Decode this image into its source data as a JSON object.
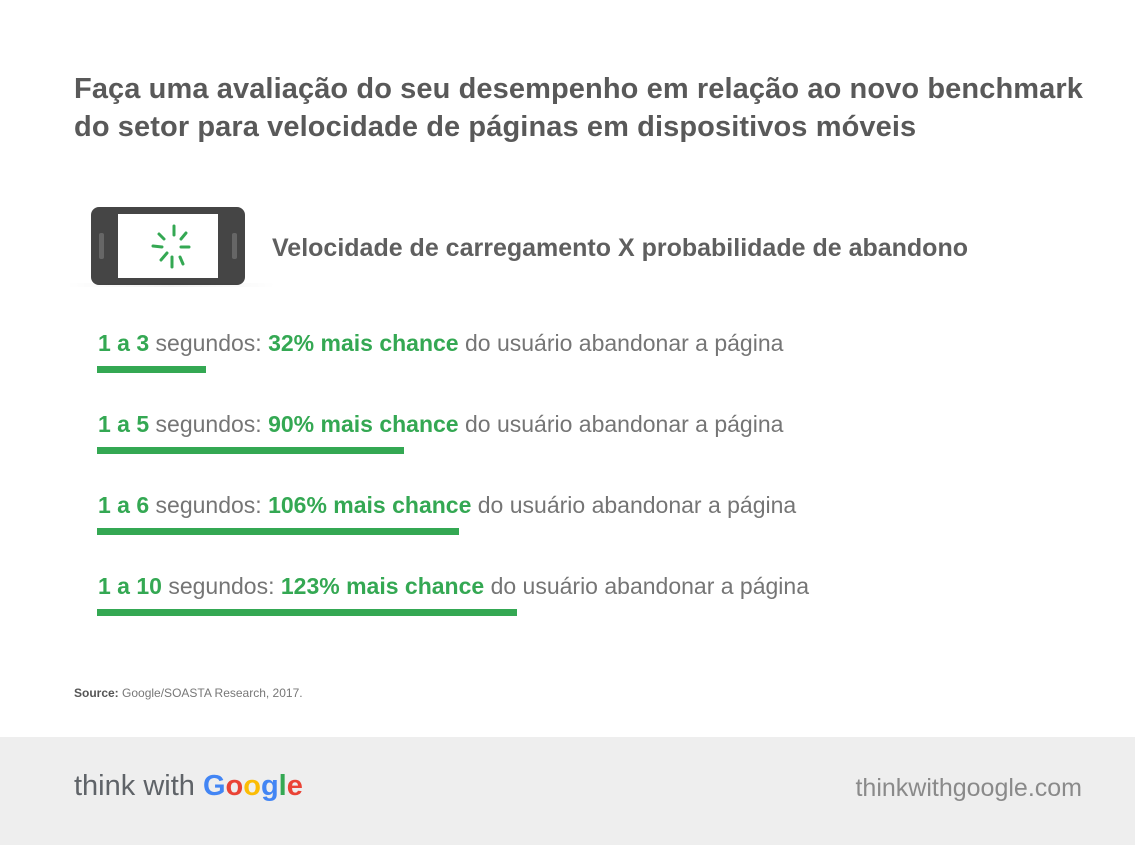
{
  "title": "Faça uma avaliação do seu desempenho em relação ao novo benchmark do setor para velocidade de páginas em dispositivos móveis",
  "icon": "phone-loading-icon",
  "chart_data": {
    "type": "bar",
    "title": "Velocidade de carregamento X probabilidade de abandono",
    "unit": "%",
    "xlabel": "",
    "ylabel": "",
    "ylim": [
      0,
      123
    ],
    "bar_color": "#34a853",
    "rows": [
      {
        "range": "1 a 3",
        "unit_text": "segundos:",
        "value": 32,
        "value_text": "32% mais chance",
        "suffix": "do usuário abandonar a página"
      },
      {
        "range": "1 a 5",
        "unit_text": "segundos:",
        "value": 90,
        "value_text": "90% mais chance",
        "suffix": "do usuário abandonar a página"
      },
      {
        "range": "1 a 6",
        "unit_text": "segundos:",
        "value": 106,
        "value_text": "106% mais chance",
        "suffix": "do usuário abandonar a página"
      },
      {
        "range": "1 a 10",
        "unit_text": "segundos:",
        "value": 123,
        "value_text": "123% mais chance",
        "suffix": "do usuário abandonar a página"
      }
    ]
  },
  "source": {
    "label": "Source:",
    "text": "Google/SOASTA Research, 2017."
  },
  "footer": {
    "brand_prefix": "think with",
    "brand_letters": [
      "G",
      "o",
      "o",
      "g",
      "l",
      "e"
    ],
    "site": "thinkwithgoogle.com"
  }
}
